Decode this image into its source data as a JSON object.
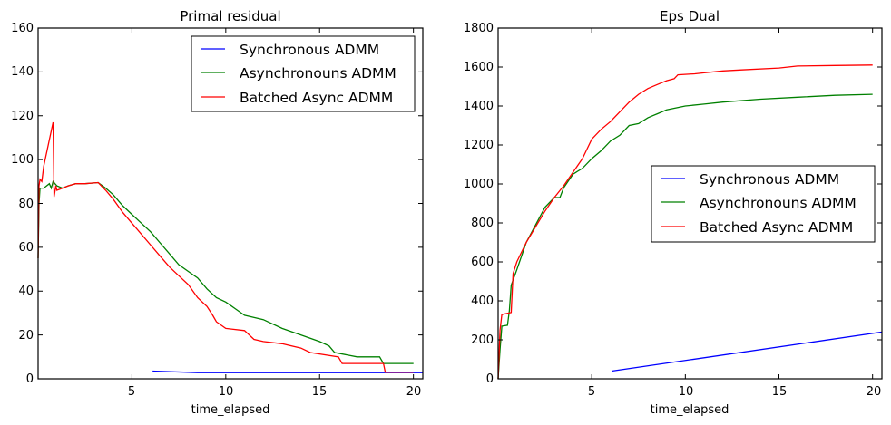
{
  "chart_data": [
    {
      "type": "line",
      "title": "Primal residual",
      "xlabel": "time_elapsed",
      "ylabel": "",
      "xlim": [
        0,
        20.5
      ],
      "ylim": [
        0,
        160
      ],
      "xticks": [
        5,
        10,
        15,
        20
      ],
      "yticks": [
        0,
        20,
        40,
        60,
        80,
        100,
        120,
        140,
        160
      ],
      "grid": false,
      "legend_position": "upper right",
      "series": [
        {
          "name": "Synchronous ADMM",
          "color": "#0000ff",
          "x": [
            6.1,
            8.5,
            20.5
          ],
          "y": [
            3.5,
            2.8,
            2.8
          ]
        },
        {
          "name": "Asynchronouns ADMM",
          "color": "#008000",
          "x": [
            0.0,
            0.05,
            0.1,
            0.3,
            0.6,
            0.7,
            0.8,
            1.0,
            1.3,
            1.6,
            2.0,
            2.5,
            3.2,
            3.6,
            4.0,
            4.5,
            5.0,
            5.5,
            6.0,
            6.5,
            7.0,
            7.5,
            8.0,
            8.5,
            9.0,
            9.5,
            10.0,
            10.5,
            11.0,
            12.0,
            13.0,
            14.0,
            15.0,
            15.5,
            15.8,
            17.0,
            18.2,
            18.4,
            20.0
          ],
          "y": [
            55,
            80,
            87,
            87,
            89,
            87,
            90,
            88,
            87,
            88,
            89,
            89,
            89.5,
            87,
            84,
            79,
            75,
            71,
            67,
            62,
            57,
            52,
            49,
            46,
            41,
            37,
            35,
            32,
            29,
            27,
            23,
            20,
            17,
            15,
            12,
            10,
            10,
            7,
            7
          ]
        },
        {
          "name": "Batched Async ADMM",
          "color": "#ff0000",
          "x": [
            0.0,
            0.05,
            0.1,
            0.2,
            0.3,
            0.8,
            0.85,
            0.95,
            1.0,
            1.3,
            1.6,
            2.0,
            2.5,
            3.2,
            3.6,
            4.0,
            4.5,
            5.0,
            5.5,
            6.0,
            6.5,
            7.0,
            7.5,
            8.0,
            8.5,
            9.0,
            9.3,
            9.5,
            10.0,
            11.0,
            11.5,
            12.0,
            13.0,
            14.0,
            14.5,
            16.0,
            16.2,
            18.4,
            18.5,
            20.0
          ],
          "y": [
            55,
            88,
            91,
            90,
            97,
            117,
            83,
            88,
            86,
            87,
            88,
            89,
            89,
            89.5,
            86,
            82,
            76,
            71,
            66,
            61,
            56,
            51,
            47,
            43,
            37,
            33,
            29,
            26,
            23,
            22,
            18,
            17,
            16,
            14,
            12,
            10,
            7,
            7,
            3,
            3
          ]
        }
      ]
    },
    {
      "type": "line",
      "title": "Eps Dual",
      "xlabel": "time_elapsed",
      "ylabel": "",
      "xlim": [
        0,
        20.5
      ],
      "ylim": [
        0,
        1800
      ],
      "xticks": [
        5,
        10,
        15,
        20
      ],
      "yticks": [
        0,
        200,
        400,
        600,
        800,
        1000,
        1200,
        1400,
        1600,
        1800
      ],
      "grid": false,
      "legend_position": "center right",
      "series": [
        {
          "name": "Synchronous ADMM",
          "color": "#0000ff",
          "x": [
            6.1,
            20.5
          ],
          "y": [
            40,
            240
          ]
        },
        {
          "name": "Asynchronouns ADMM",
          "color": "#008000",
          "x": [
            0.0,
            0.1,
            0.2,
            0.5,
            0.6,
            0.7,
            1.0,
            1.5,
            2.0,
            2.5,
            3.0,
            3.3,
            3.5,
            4.0,
            4.5,
            5.0,
            5.5,
            6.0,
            6.5,
            7.0,
            7.5,
            8.0,
            8.5,
            9.0,
            9.5,
            10.0,
            11.0,
            12.0,
            14.0,
            16.0,
            18.0,
            20.0
          ],
          "y": [
            0,
            150,
            270,
            275,
            350,
            480,
            560,
            700,
            790,
            880,
            930,
            930,
            980,
            1050,
            1080,
            1130,
            1170,
            1220,
            1250,
            1300,
            1310,
            1340,
            1360,
            1380,
            1390,
            1400,
            1410,
            1420,
            1435,
            1445,
            1455,
            1460
          ]
        },
        {
          "name": "Batched Async ADMM",
          "color": "#ff0000",
          "x": [
            0.0,
            0.1,
            0.2,
            0.7,
            0.8,
            1.0,
            1.5,
            2.0,
            2.5,
            3.0,
            3.5,
            4.0,
            4.5,
            5.0,
            5.5,
            6.0,
            6.5,
            7.0,
            7.5,
            8.0,
            8.5,
            9.0,
            9.4,
            9.6,
            10.5,
            11.0,
            12.0,
            13.0,
            15.0,
            16.0,
            18.0,
            20.0
          ],
          "y": [
            0,
            250,
            330,
            340,
            540,
            600,
            700,
            780,
            860,
            930,
            990,
            1060,
            1130,
            1230,
            1280,
            1320,
            1370,
            1420,
            1460,
            1490,
            1510,
            1530,
            1540,
            1560,
            1565,
            1570,
            1580,
            1585,
            1595,
            1605,
            1608,
            1610
          ]
        }
      ]
    }
  ],
  "plots": [
    {
      "title": "Primal residual",
      "xlabel": "time_elapsed",
      "xtick_labels": [
        "5",
        "10",
        "15",
        "20"
      ],
      "ytick_labels": [
        "0",
        "20",
        "40",
        "60",
        "80",
        "100",
        "120",
        "140",
        "160"
      ],
      "legend": [
        "Synchronous ADMM",
        "Asynchronouns ADMM",
        "Batched Async ADMM"
      ]
    },
    {
      "title": "Eps Dual",
      "xlabel": "time_elapsed",
      "xtick_labels": [
        "5",
        "10",
        "15",
        "20"
      ],
      "ytick_labels": [
        "0",
        "200",
        "400",
        "600",
        "800",
        "1000",
        "1200",
        "1400",
        "1600",
        "1800"
      ],
      "legend": [
        "Synchronous ADMM",
        "Asynchronouns ADMM",
        "Batched Async ADMM"
      ]
    }
  ]
}
